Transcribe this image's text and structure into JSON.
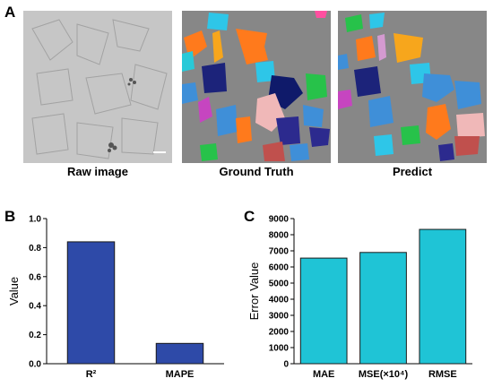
{
  "panel_letters": {
    "a": "A",
    "b": "B",
    "c": "C"
  },
  "images": {
    "raw_caption": "Raw image",
    "gt_caption": "Ground Truth",
    "pred_caption": "Predict",
    "background_color": "#8a8a8a",
    "raw_background_color": "#c9c9c9"
  },
  "chart_data": [
    {
      "type": "bar",
      "categories": [
        "R²",
        "MAPE"
      ],
      "values": [
        0.84,
        0.14
      ],
      "xlabel": "",
      "ylabel": "Value",
      "ylim": [
        0,
        1.0
      ],
      "yticks": [
        0.0,
        0.2,
        0.4,
        0.6,
        0.8,
        1.0
      ],
      "ytick_labels": [
        "0.0",
        "0.2",
        "0.4",
        "0.6",
        "0.8",
        "1.0"
      ],
      "bar_color": "#2e4aa8",
      "grid": false
    },
    {
      "type": "bar",
      "categories": [
        "MAE",
        "MSE(×10⁴)",
        "RMSE"
      ],
      "values": [
        6550,
        6900,
        8330
      ],
      "xlabel": "",
      "ylabel": "Error Value",
      "ylim": [
        0,
        9000
      ],
      "yticks": [
        0,
        1000,
        2000,
        3000,
        4000,
        5000,
        6000,
        7000,
        8000,
        9000
      ],
      "ytick_labels": [
        "0",
        "1000",
        "2000",
        "3000",
        "4000",
        "5000",
        "6000",
        "7000",
        "8000",
        "9000"
      ],
      "bar_color": "#1fc4d6",
      "grid": false
    }
  ]
}
